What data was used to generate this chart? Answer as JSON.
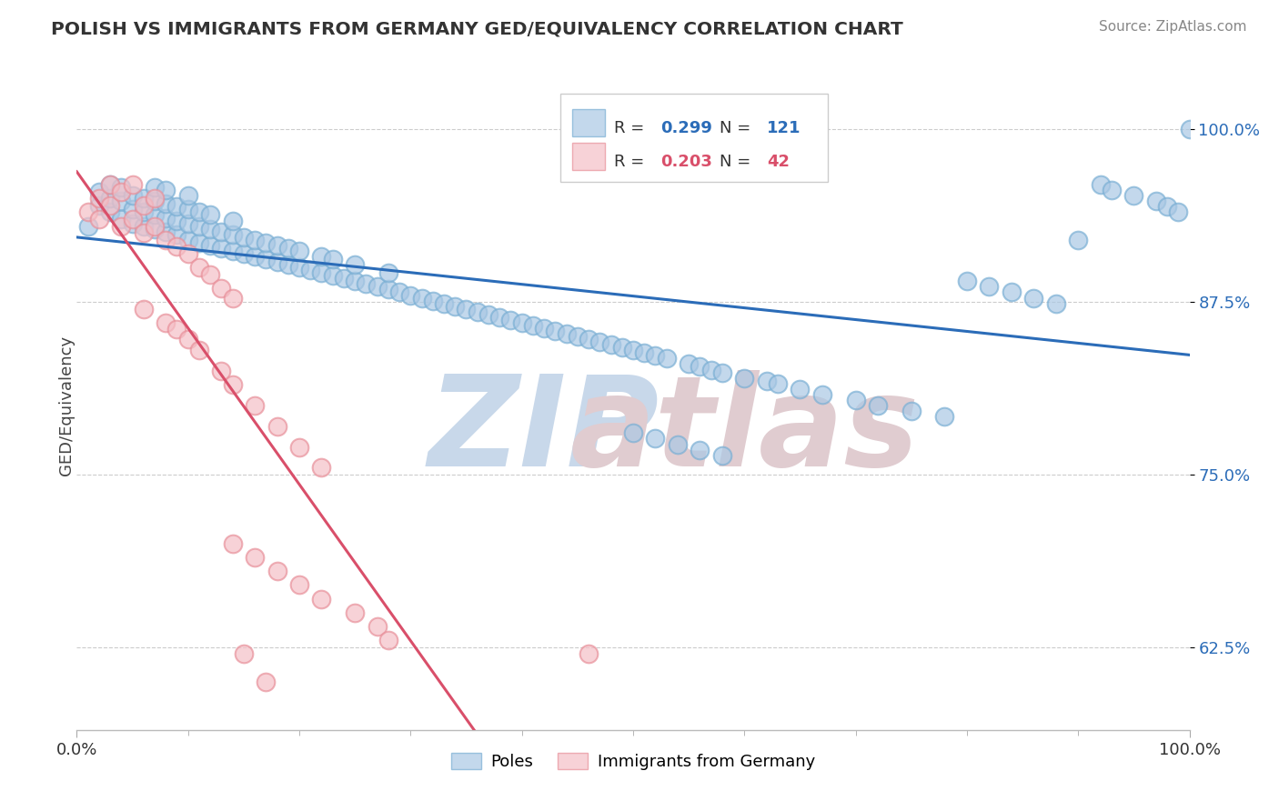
{
  "title": "POLISH VS IMMIGRANTS FROM GERMANY GED/EQUIVALENCY CORRELATION CHART",
  "source": "Source: ZipAtlas.com",
  "ylabel": "GED/Equivalency",
  "xlim": [
    0.0,
    1.0
  ],
  "ylim": [
    0.565,
    1.035
  ],
  "yticks": [
    0.625,
    0.75,
    0.875,
    1.0
  ],
  "ytick_labels": [
    "62.5%",
    "75.0%",
    "87.5%",
    "100.0%"
  ],
  "xtick_labels": [
    "0.0%",
    "100.0%"
  ],
  "legend_label_blue": "Poles",
  "legend_label_pink": "Immigrants from Germany",
  "blue_color": "#aac8e4",
  "pink_color": "#f5bfc6",
  "blue_edge_color": "#7aafd4",
  "pink_edge_color": "#e8909a",
  "blue_line_color": "#2b6cb8",
  "pink_line_color": "#d94f6a",
  "background_color": "#ffffff",
  "grid_color": "#cccccc",
  "title_color": "#333333",
  "legend_R_blue_val": "0.299",
  "legend_N_blue_val": "121",
  "legend_R_pink_val": "0.203",
  "legend_N_pink_val": "42",
  "watermark_zip_color": "#c8d8ea",
  "watermark_atlas_color": "#e0ccd0",
  "blue_dots_x": [
    0.01,
    0.02,
    0.02,
    0.03,
    0.03,
    0.03,
    0.04,
    0.04,
    0.04,
    0.05,
    0.05,
    0.05,
    0.06,
    0.06,
    0.06,
    0.07,
    0.07,
    0.07,
    0.07,
    0.08,
    0.08,
    0.08,
    0.08,
    0.09,
    0.09,
    0.09,
    0.1,
    0.1,
    0.1,
    0.1,
    0.11,
    0.11,
    0.11,
    0.12,
    0.12,
    0.12,
    0.13,
    0.13,
    0.14,
    0.14,
    0.14,
    0.15,
    0.15,
    0.16,
    0.16,
    0.17,
    0.17,
    0.18,
    0.18,
    0.19,
    0.19,
    0.2,
    0.2,
    0.21,
    0.22,
    0.22,
    0.23,
    0.23,
    0.24,
    0.25,
    0.25,
    0.26,
    0.27,
    0.28,
    0.28,
    0.29,
    0.3,
    0.31,
    0.32,
    0.33,
    0.34,
    0.35,
    0.36,
    0.37,
    0.38,
    0.39,
    0.4,
    0.41,
    0.42,
    0.43,
    0.44,
    0.45,
    0.46,
    0.47,
    0.48,
    0.49,
    0.5,
    0.51,
    0.52,
    0.53,
    0.55,
    0.56,
    0.57,
    0.58,
    0.6,
    0.62,
    0.63,
    0.65,
    0.67,
    0.7,
    0.72,
    0.75,
    0.78,
    0.8,
    0.82,
    0.84,
    0.86,
    0.88,
    0.9,
    0.92,
    0.93,
    0.95,
    0.97,
    0.98,
    0.99,
    1.0,
    0.5,
    0.52,
    0.54,
    0.56,
    0.58
  ],
  "blue_dots_y": [
    0.93,
    0.945,
    0.955,
    0.94,
    0.95,
    0.96,
    0.935,
    0.948,
    0.958,
    0.932,
    0.942,
    0.952,
    0.93,
    0.94,
    0.95,
    0.928,
    0.938,
    0.948,
    0.958,
    0.926,
    0.936,
    0.946,
    0.956,
    0.924,
    0.934,
    0.944,
    0.92,
    0.932,
    0.942,
    0.952,
    0.918,
    0.93,
    0.94,
    0.916,
    0.928,
    0.938,
    0.914,
    0.926,
    0.912,
    0.924,
    0.934,
    0.91,
    0.922,
    0.908,
    0.92,
    0.906,
    0.918,
    0.904,
    0.916,
    0.902,
    0.914,
    0.9,
    0.912,
    0.898,
    0.896,
    0.908,
    0.894,
    0.906,
    0.892,
    0.89,
    0.902,
    0.888,
    0.886,
    0.884,
    0.896,
    0.882,
    0.88,
    0.878,
    0.876,
    0.874,
    0.872,
    0.87,
    0.868,
    0.866,
    0.864,
    0.862,
    0.86,
    0.858,
    0.856,
    0.854,
    0.852,
    0.85,
    0.848,
    0.846,
    0.844,
    0.842,
    0.84,
    0.838,
    0.836,
    0.834,
    0.83,
    0.828,
    0.826,
    0.824,
    0.82,
    0.818,
    0.816,
    0.812,
    0.808,
    0.804,
    0.8,
    0.796,
    0.792,
    0.89,
    0.886,
    0.882,
    0.878,
    0.874,
    0.92,
    0.96,
    0.956,
    0.952,
    0.948,
    0.944,
    0.94,
    1.0,
    0.78,
    0.776,
    0.772,
    0.768,
    0.764
  ],
  "pink_dots_x": [
    0.01,
    0.02,
    0.02,
    0.03,
    0.03,
    0.04,
    0.04,
    0.05,
    0.05,
    0.06,
    0.06,
    0.07,
    0.07,
    0.08,
    0.09,
    0.1,
    0.11,
    0.12,
    0.13,
    0.14,
    0.06,
    0.08,
    0.09,
    0.1,
    0.11,
    0.13,
    0.14,
    0.16,
    0.18,
    0.2,
    0.22,
    0.14,
    0.16,
    0.18,
    0.2,
    0.22,
    0.25,
    0.27,
    0.28,
    0.46,
    0.15,
    0.17
  ],
  "pink_dots_y": [
    0.94,
    0.935,
    0.95,
    0.945,
    0.96,
    0.93,
    0.955,
    0.935,
    0.96,
    0.925,
    0.945,
    0.93,
    0.95,
    0.92,
    0.915,
    0.91,
    0.9,
    0.895,
    0.885,
    0.878,
    0.87,
    0.86,
    0.855,
    0.848,
    0.84,
    0.825,
    0.815,
    0.8,
    0.785,
    0.77,
    0.755,
    0.7,
    0.69,
    0.68,
    0.67,
    0.66,
    0.65,
    0.64,
    0.63,
    0.62,
    0.62,
    0.6
  ]
}
